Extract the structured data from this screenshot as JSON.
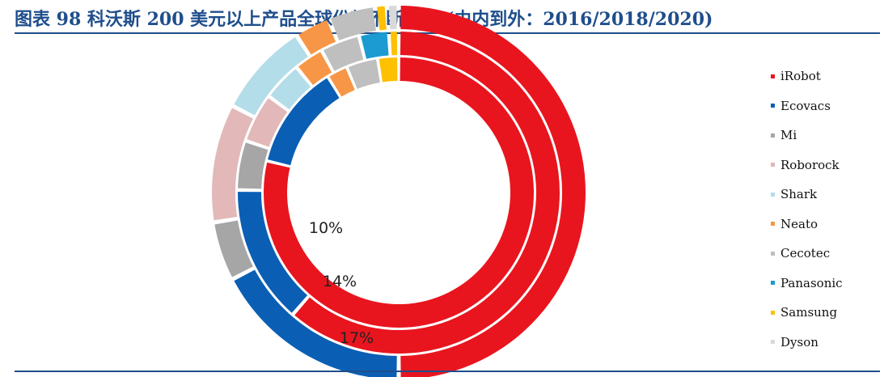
{
  "header": {
    "title": "图表 98   科沃斯 200 美元以上产品全球份额不断提升 (由内到外：2016/2018/2020)"
  },
  "chart_data": {
    "type": "donut",
    "title": "科沃斯 200 美元以上产品全球份额不断提升 (由内到外：2016/2018/2020)",
    "categories": [
      "iRobot",
      "Ecovacs",
      "Mi",
      "Roborock",
      "Shark",
      "Neato",
      "Cecotec",
      "Panasonic",
      "Samsung",
      "Dyson"
    ],
    "colors": [
      "#e8151e",
      "#0a5fb4",
      "#a6a6a6",
      "#e2b8b8",
      "#b3dde8",
      "#f79646",
      "#bfbfbf",
      "#1b9bd1",
      "#ffc000",
      "#d9d9d9"
    ],
    "series": [
      {
        "name": "2016",
        "values": [
          63,
          10,
          0,
          0,
          0,
          2,
          3,
          0,
          2,
          0
        ]
      },
      {
        "name": "2018",
        "values": [
          62,
          14,
          5,
          5,
          4,
          3,
          4,
          3,
          1,
          0
        ]
      },
      {
        "name": "2020",
        "values": [
          49,
          17,
          5,
          10,
          8,
          3,
          4,
          0,
          1,
          1
        ]
      }
    ],
    "legend_position": "right",
    "data_labels": [
      "10%",
      "14%",
      "17%"
    ]
  }
}
